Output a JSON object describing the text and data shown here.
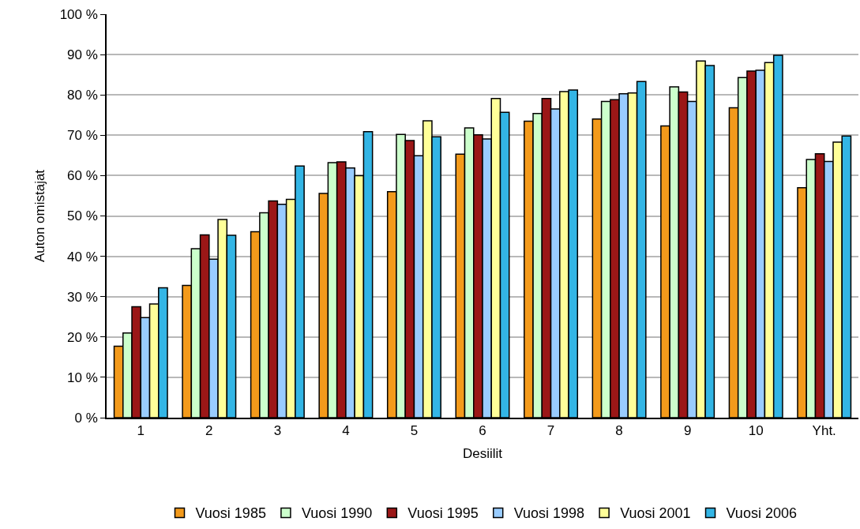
{
  "chart_data": {
    "type": "bar",
    "xlabel": "Desiilit",
    "ylabel": "Auton omistajat",
    "categories": [
      "1",
      "2",
      "3",
      "4",
      "5",
      "6",
      "7",
      "8",
      "9",
      "10",
      "Yht."
    ],
    "series": [
      {
        "name": "Vuosi 1985",
        "color": "#f39a1b",
        "values": [
          17.7,
          32.8,
          46.1,
          55.6,
          56,
          65.3,
          73.5,
          74,
          72.3,
          76.8,
          57
        ]
      },
      {
        "name": "Vuosi 1990",
        "color": "#ccffcc",
        "values": [
          21,
          41.9,
          50.8,
          63.2,
          70.2,
          71.8,
          75.4,
          78.4,
          82,
          84.3,
          64
        ]
      },
      {
        "name": "Vuosi 1995",
        "color": "#9b1717",
        "values": [
          27.5,
          45.3,
          53.7,
          63.4,
          68.7,
          70.1,
          79.1,
          78.8,
          80.7,
          85.9,
          65.4
        ]
      },
      {
        "name": "Vuosi 1998",
        "color": "#99ccff",
        "values": [
          24.8,
          39.3,
          52.9,
          61.9,
          64.9,
          69.1,
          76.5,
          80.3,
          78.4,
          86.1,
          63.5
        ]
      },
      {
        "name": "Vuosi 2001",
        "color": "#ffff99",
        "values": [
          28.2,
          49.1,
          54.1,
          60,
          73.6,
          79.1,
          80.8,
          80.5,
          88.4,
          88,
          68.3
        ]
      },
      {
        "name": "Vuosi 2006",
        "color": "#33b5e5",
        "values": [
          32.2,
          45.2,
          62.4,
          70.9,
          69.6,
          75.7,
          81.2,
          83.3,
          87.3,
          89.8,
          69.8
        ]
      }
    ],
    "ylim": [
      0,
      100
    ],
    "yticks": [
      {
        "value": 0,
        "label": "0 %"
      },
      {
        "value": 10,
        "label": "10 %"
      },
      {
        "value": 20,
        "label": "20 %"
      },
      {
        "value": 30,
        "label": "30 %"
      },
      {
        "value": 40,
        "label": "40 %"
      },
      {
        "value": 50,
        "label": "50 %"
      },
      {
        "value": 60,
        "label": "60 %"
      },
      {
        "value": 70,
        "label": "70 %"
      },
      {
        "value": 80,
        "label": "80 %"
      },
      {
        "value": 90,
        "label": "90 %"
      },
      {
        "value": 100,
        "label": "100 %"
      }
    ],
    "grid": "y",
    "legend": "bottom"
  }
}
